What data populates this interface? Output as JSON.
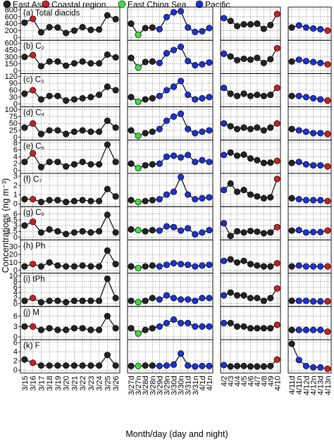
{
  "figure": {
    "legend": [
      {
        "label": "East Asia",
        "color": "#222222"
      },
      {
        "label": "Coastal region",
        "color": "#cc1f1f"
      },
      {
        "label": "East China Sea",
        "color": "#3ee03e"
      },
      {
        "label": "Pacific",
        "color": "#1a32d6"
      }
    ],
    "ylabel": "Concentrations (ng m⁻³)",
    "xlabel": "Month/day (day and night)"
  },
  "chart_data": {
    "type": "line",
    "point_color_codes": {
      "E": "East Asia",
      "C": "Coastal region",
      "S": "East China Sea",
      "P": "Pacific"
    },
    "segments": [
      {
        "ticks": [
          "3/15",
          "3/16",
          "3/17",
          "3/18",
          "3/19",
          "3/20",
          "3/21",
          "3/22",
          "3/23",
          "3/24",
          "3/25",
          "3/26"
        ],
        "regions": [
          "E",
          "C",
          "E",
          "E",
          "E",
          "E",
          "E",
          "E",
          "E",
          "E",
          "E",
          "E"
        ]
      },
      {
        "ticks": [
          "3/27d",
          "3/27n",
          "3/28d",
          "3/28n",
          "3/29d",
          "3/29n",
          "3/30d",
          "3/30n",
          "3/31d",
          "3/31n",
          "4/1d",
          "4/1n"
        ],
        "regions": [
          "E",
          "S",
          "E",
          "E",
          "P",
          "P",
          "P",
          "P",
          "P",
          "P",
          "P",
          "P"
        ]
      },
      {
        "ticks": [
          "4/2",
          "4/3",
          "4/4",
          "4/5",
          "4/6",
          "4/7",
          "4/8",
          "4/9",
          "4/10"
        ],
        "regions": [
          "P",
          "E",
          "E",
          "E",
          "E",
          "E",
          "E",
          "E",
          "C"
        ]
      },
      {
        "ticks": [
          "4/11d",
          "4/11n",
          "4/12d",
          "4/12n",
          "4/13d",
          "4/13n"
        ],
        "regions": [
          "E",
          "P",
          "P",
          "P",
          "P",
          "C"
        ]
      }
    ],
    "panels": [
      {
        "label": "(a) Total diacids",
        "ylim": [
          0,
          800
        ],
        "yticks": [
          0,
          200,
          400,
          600,
          800
        ],
        "segments": [
          [
            430,
            540,
            150,
            300,
            290,
            130,
            200,
            300,
            220,
            230,
            640,
            530
          ],
          [
            400,
            80,
            270,
            290,
            240,
            590,
            730,
            760,
            290,
            160,
            180,
            270
          ],
          [
            560,
            480,
            330,
            380,
            380,
            400,
            250,
            360,
            680
          ],
          [
            290,
            350,
            290,
            260,
            240,
            200
          ]
        ]
      },
      {
        "label": "(b) C₂",
        "ylim": [
          0,
          600
        ],
        "yticks": [
          0,
          150,
          300,
          450,
          600
        ],
        "segments": [
          [
            300,
            340,
            100,
            200,
            200,
            110,
            160,
            200,
            160,
            160,
            350,
            290
          ],
          [
            280,
            70,
            190,
            200,
            170,
            380,
            450,
            520,
            210,
            120,
            140,
            180
          ],
          [
            370,
            310,
            230,
            260,
            240,
            280,
            170,
            250,
            490
          ],
          [
            200,
            240,
            210,
            190,
            170,
            140
          ]
        ]
      },
      {
        "label": "(c) C₃",
        "ylim": [
          0,
          120
        ],
        "yticks": [
          0,
          30,
          60,
          90,
          120
        ],
        "segments": [
          [
            45,
            60,
            20,
            35,
            35,
            15,
            20,
            25,
            30,
            40,
            75,
            60
          ],
          [
            30,
            10,
            20,
            25,
            35,
            60,
            75,
            100,
            40,
            20,
            25,
            30
          ],
          [
            70,
            45,
            35,
            45,
            35,
            40,
            35,
            40,
            70
          ],
          [
            35,
            35,
            30,
            25,
            20,
            15
          ]
        ]
      },
      {
        "label": "(d) C₄",
        "ylim": [
          0,
          100
        ],
        "yticks": [
          0,
          25,
          50,
          75,
          100
        ],
        "segments": [
          [
            35,
            50,
            12,
            25,
            25,
            12,
            20,
            25,
            20,
            20,
            60,
            35
          ],
          [
            25,
            5,
            15,
            20,
            30,
            60,
            75,
            85,
            30,
            15,
            20,
            25
          ],
          [
            50,
            40,
            30,
            35,
            30,
            35,
            25,
            35,
            50
          ],
          [
            30,
            25,
            20,
            15,
            15,
            12
          ]
        ]
      },
      {
        "label": "(e) C₆",
        "ylim": [
          0,
          8
        ],
        "yticks": [
          0,
          2,
          4,
          6,
          8
        ],
        "segments": [
          [
            2.5,
            5,
            1,
            2.5,
            2.5,
            1.2,
            1.8,
            2.5,
            1.8,
            1.8,
            7.5,
            2.5
          ],
          [
            2,
            0.7,
            1.5,
            1.8,
            2,
            4,
            4.3,
            3.8,
            4.5,
            2.5,
            3,
            2.5
          ],
          [
            4.5,
            5.2,
            4.3,
            4.6,
            3.5,
            3,
            2.2,
            2.3,
            2.8
          ],
          [
            2.2,
            2.5,
            1.8,
            1.5,
            1.5,
            1.2
          ]
        ]
      },
      {
        "label": "(f) C₇",
        "ylim": [
          0,
          3
        ],
        "yticks": [
          0,
          1,
          2,
          3
        ],
        "segments": [
          [
            0.5,
            0.5,
            0.2,
            0.4,
            0.4,
            0.2,
            0.3,
            0.4,
            0.3,
            0.3,
            1.6,
            0.8
          ],
          [
            0.4,
            0.2,
            0.3,
            0.4,
            0.5,
            1,
            1.3,
            2.9,
            1,
            0.5,
            0.6,
            0.7
          ],
          [
            1.5,
            2.2,
            1.3,
            1.5,
            1,
            0.8,
            0.6,
            0.7,
            2.7
          ],
          [
            0.6,
            0.5,
            0.4,
            0.4,
            0.4,
            0.3
          ]
        ]
      },
      {
        "label": "(g) C₉",
        "ylim": [
          0,
          7.2
        ],
        "yticks": [
          0,
          1.5,
          3,
          4.5,
          6
        ],
        "segments": [
          [
            3,
            4,
            1.2,
            2,
            1.5,
            0.8,
            1.2,
            1.5,
            1.2,
            1.5,
            5.8,
            1.2
          ],
          [
            2,
            1.8,
            1.5,
            1.8,
            1.7,
            2.8,
            2.6,
            1.7,
            2.3,
            0.7,
            1.2,
            1.8
          ],
          [
            3.6,
            0.3,
            1.5,
            1.2,
            1.6,
            1.4,
            1,
            1.2,
            2.6
          ],
          [
            1.7,
            1.8,
            1.2,
            1.3,
            1.3,
            1.7
          ]
        ]
      },
      {
        "label": "(h) Ph",
        "ylim": [
          0,
          35
        ],
        "yticks": [
          0,
          10,
          20,
          30
        ],
        "segments": [
          [
            5,
            8,
            5,
            10,
            6,
            5,
            5,
            6,
            5,
            5,
            25,
            8
          ],
          [
            5,
            3,
            5,
            6,
            5,
            7,
            9,
            8,
            7,
            5,
            6,
            7
          ],
          [
            12,
            14,
            10,
            12,
            8,
            6,
            5,
            5,
            9
          ],
          [
            5,
            6,
            5,
            5,
            5,
            5
          ]
        ]
      },
      {
        "label": "(i) tPh",
        "ylim": [
          0,
          10
        ],
        "yticks": [
          0,
          2,
          4,
          6,
          8,
          10
        ],
        "segments": [
          [
            1,
            2,
            0.5,
            1,
            1,
            0.5,
            1,
            1,
            1,
            1,
            9,
            2
          ],
          [
            1,
            0.5,
            1,
            2,
            1.5,
            3,
            2,
            1.5,
            1.5,
            1,
            2,
            2
          ],
          [
            3,
            4,
            3,
            3,
            2,
            2,
            1,
            2,
            5.5
          ],
          [
            1,
            1,
            1,
            0.8,
            0.8,
            0.8
          ]
        ]
      },
      {
        "label": "(j) M",
        "ylim": [
          0,
          8
        ],
        "yticks": [
          0,
          3,
          6
        ],
        "segments": [
          [
            3,
            3,
            2,
            2.5,
            2,
            2,
            2.5,
            2.5,
            2,
            2,
            6,
            2.5
          ],
          [
            2.5,
            1,
            2,
            2.5,
            3,
            4,
            5,
            4,
            4,
            3,
            3,
            3
          ],
          [
            4,
            4,
            3,
            3,
            2.5,
            2.5,
            2.5,
            2.5,
            3.5
          ],
          [
            2,
            2,
            2,
            2,
            2,
            1.5
          ]
        ]
      },
      {
        "label": "(k) F",
        "ylim": [
          0,
          6
        ],
        "yticks": [
          0,
          2,
          4,
          6
        ],
        "segments": [
          [
            2.3,
            1.6,
            1,
            1,
            1,
            1,
            1,
            1,
            1,
            1,
            3.3,
            1
          ],
          [
            0.9,
            0.9,
            1,
            1,
            0.9,
            1,
            1.2,
            3.6,
            1,
            0.8,
            0.9,
            0.9
          ],
          [
            1.1,
            0.8,
            0.9,
            0.9,
            0.8,
            0.8,
            0.8,
            0.9,
            2.3
          ],
          [
            5.7,
            2.2,
            0.9,
            0.6,
            0.6,
            0.3
          ]
        ]
      }
    ]
  }
}
